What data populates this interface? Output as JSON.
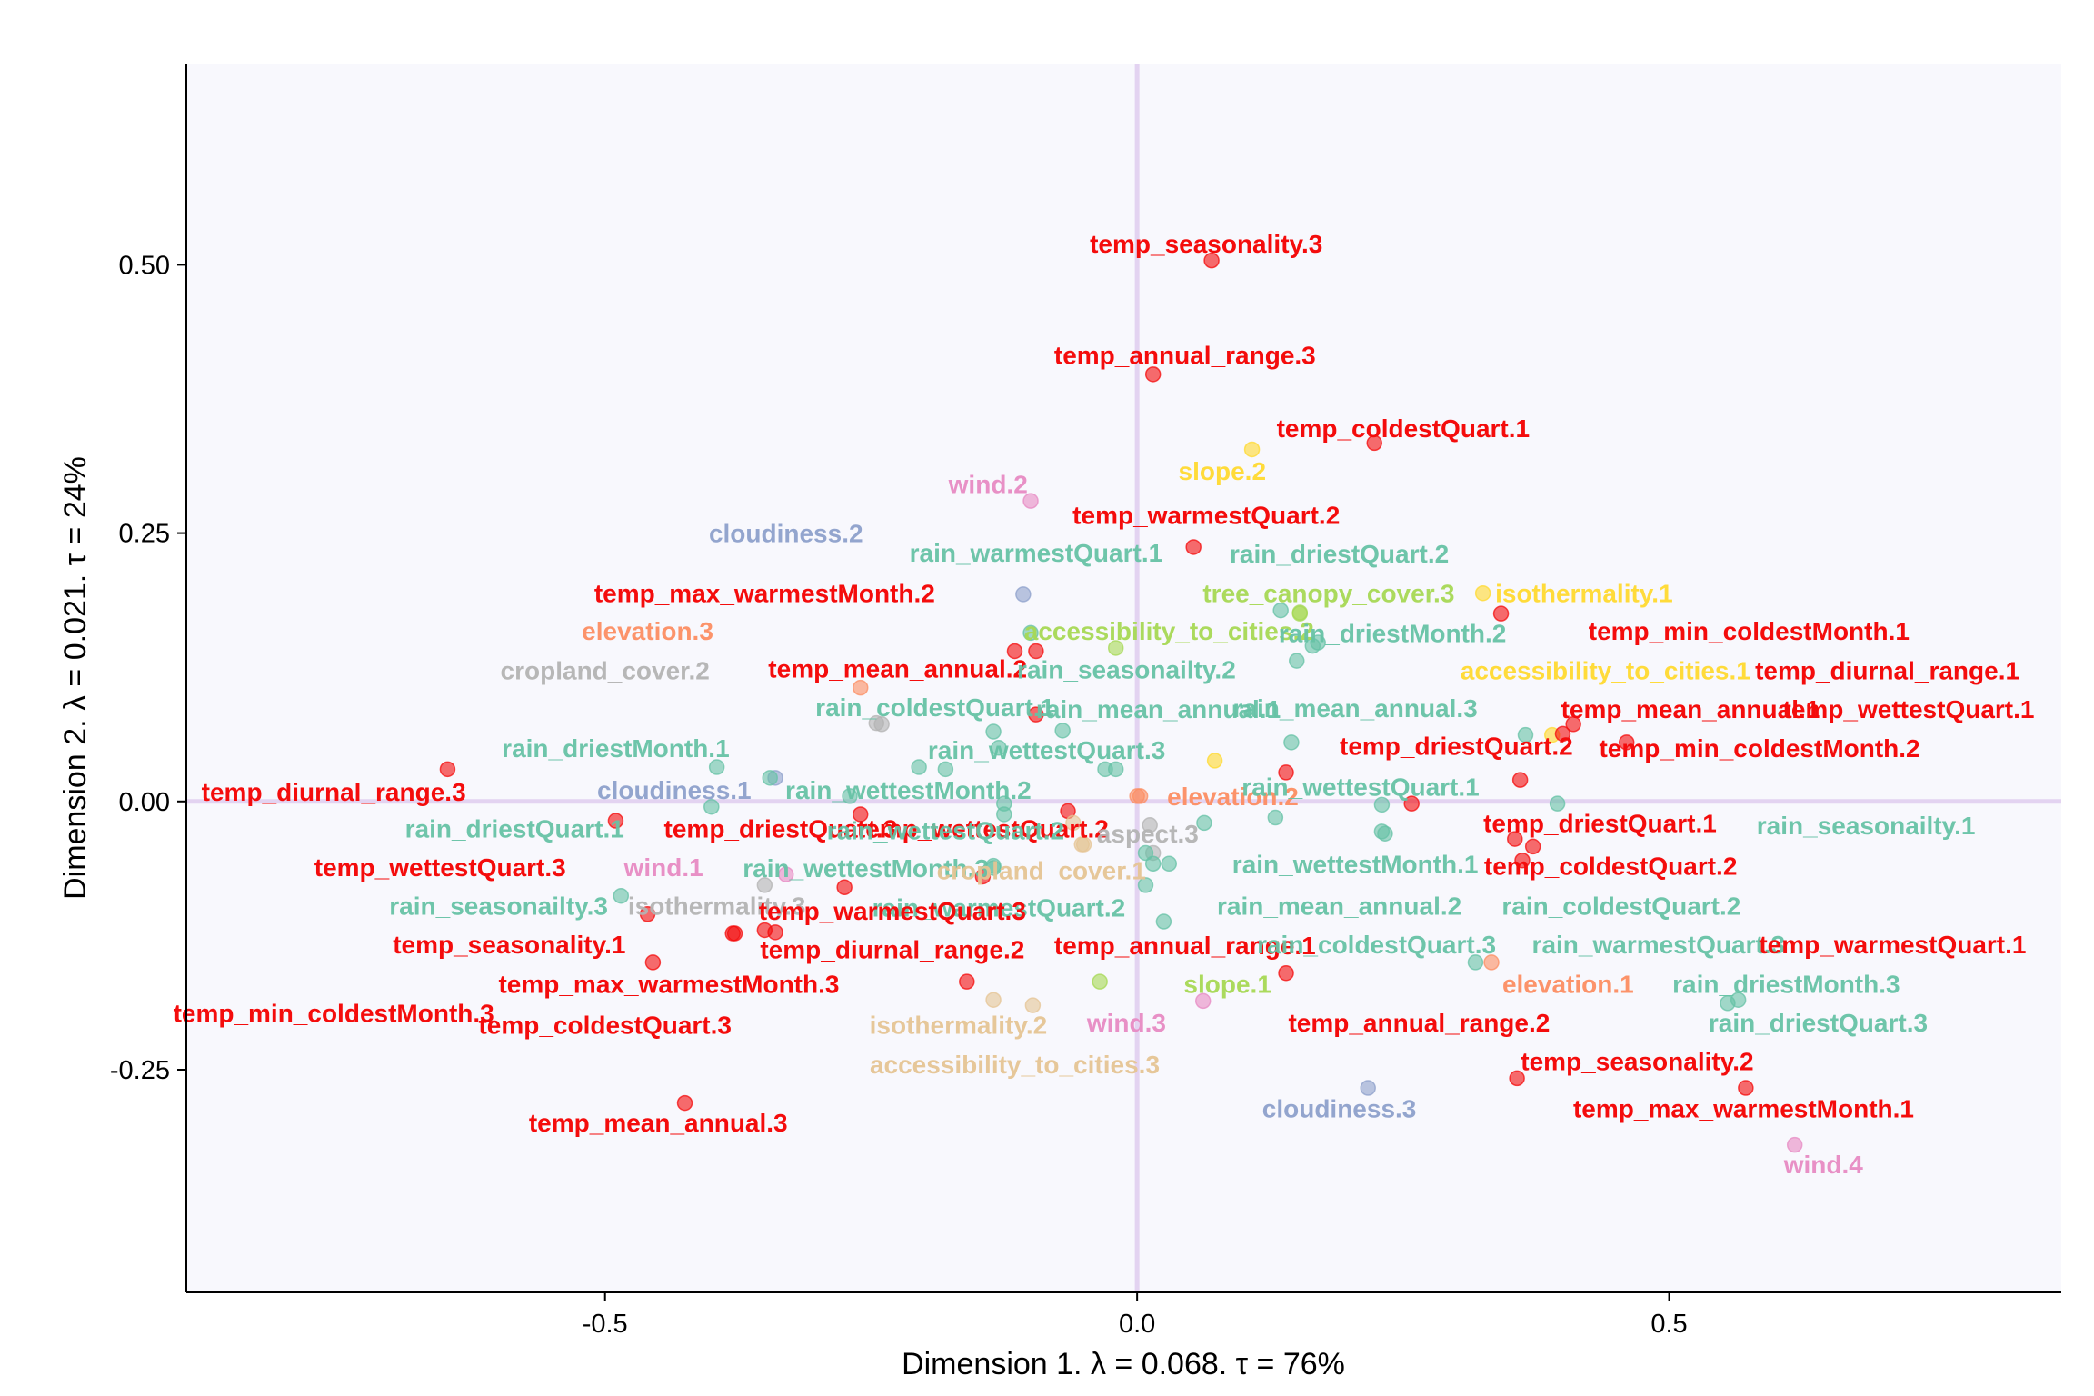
{
  "chart_data": {
    "type": "scatter",
    "title": "",
    "xlabel": "Dimension 1.   λ = 0.068.  τ = 76%",
    "ylabel": "Dimension 2.   λ = 0.021.   τ = 24%",
    "xlim": [
      -0.8935,
      0.8685
    ],
    "ylim": [
      -0.4575,
      0.6875
    ],
    "xticks": [
      -0.5,
      0.0,
      0.5
    ],
    "xtick_labels": [
      "-0.5",
      "0.0",
      "0.5"
    ],
    "yticks": [
      -0.25,
      0.0,
      0.25,
      0.5
    ],
    "ytick_labels": [
      "-0.25",
      "0.00",
      "0.25",
      "0.50"
    ],
    "reference_lines": {
      "x": 0,
      "y": 0
    },
    "grid": false,
    "panel_background": "#f8f8fd",
    "reference_line_color": "#e3d3f1",
    "group_colors": {
      "temp": "#f40c0c",
      "rain": "#66c2a5",
      "wind": "#e78ac3",
      "cloudiness": "#8da0cb",
      "elevation": "#fc8d62",
      "cropland": "#b3b3b3",
      "aspect": "#b3b3b3",
      "slope": "#ffd92f",
      "isothermality": "#ffd92f",
      "tree": "#a6d854",
      "accessibility": "#a6d854",
      "isothermality_low": "#e5c494",
      "accessibility_low": "#e5c494"
    },
    "points": [
      {
        "label": "temp_seasonality.3",
        "x": 0.07,
        "y": 0.504,
        "group": "temp",
        "lx": 0.065,
        "ly": 0.52
      },
      {
        "label": "temp_annual_range.3",
        "x": 0.015,
        "y": 0.398,
        "group": "temp",
        "lx": 0.045,
        "ly": 0.416
      },
      {
        "label": "temp_coldestQuart.1",
        "x": 0.223,
        "y": 0.334,
        "group": "temp",
        "lx": 0.25,
        "ly": 0.348
      },
      {
        "label": "wind.2",
        "x": -0.1,
        "y": 0.28,
        "group": "wind",
        "lx": -0.14,
        "ly": 0.296
      },
      {
        "label": "slope.2",
        "x": 0.108,
        "y": 0.328,
        "group": "slope",
        "lx": 0.08,
        "ly": 0.308
      },
      {
        "label": "temp_warmestQuart.2",
        "x": 0.053,
        "y": 0.237,
        "group": "temp",
        "lx": 0.065,
        "ly": 0.267
      },
      {
        "label": "cloudiness.2",
        "x": -0.107,
        "y": 0.193,
        "group": "cloudiness",
        "lx": -0.33,
        "ly": 0.25
      },
      {
        "label": "rain_warmestQuart.1",
        "x": -0.1,
        "y": 0.157,
        "group": "rain",
        "lx": -0.095,
        "ly": 0.232
      },
      {
        "label": "rain_driestQuart.2",
        "x": 0.135,
        "y": 0.178,
        "group": "rain",
        "lx": 0.19,
        "ly": 0.231
      },
      {
        "label": "temp_max_warmestMonth.2",
        "x": -0.115,
        "y": 0.14,
        "group": "temp",
        "lx": -0.35,
        "ly": 0.194
      },
      {
        "label": "tree_canopy_cover.3",
        "x": 0.153,
        "y": 0.176,
        "group": "tree",
        "lx": 0.18,
        "ly": 0.194
      },
      {
        "label": "isothermality.1",
        "x": 0.325,
        "y": 0.194,
        "group": "isothermality",
        "lx": 0.42,
        "ly": 0.194
      },
      {
        "label": "elevation.3",
        "x": -0.26,
        "y": 0.106,
        "group": "elevation",
        "lx": -0.46,
        "ly": 0.159
      },
      {
        "label": "accessibility_to_cities.2",
        "x": -0.02,
        "y": 0.143,
        "group": "accessibility",
        "lx": 0.03,
        "ly": 0.159
      },
      {
        "label": "rain_driestMonth.2",
        "x": 0.17,
        "y": 0.148,
        "group": "rain",
        "lx": 0.24,
        "ly": 0.157
      },
      {
        "label": "temp_min_coldestMonth.1",
        "x": 0.342,
        "y": 0.175,
        "group": "temp",
        "lx": 0.575,
        "ly": 0.159
      },
      {
        "label": "cropland_cover.2",
        "x": -0.245,
        "y": 0.073,
        "group": "cropland",
        "lx": -0.5,
        "ly": 0.122
      },
      {
        "label": "temp_mean_annual.2",
        "x": -0.095,
        "y": 0.081,
        "group": "temp",
        "lx": -0.225,
        "ly": 0.124
      },
      {
        "label": "rain_seasonailty.2",
        "x": 0.15,
        "y": 0.131,
        "group": "rain",
        "lx": -0.01,
        "ly": 0.123
      },
      {
        "label": "accessibility_to_cities.1",
        "x": 0.39,
        "y": 0.062,
        "group": "isothermality",
        "lx": 0.44,
        "ly": 0.122
      },
      {
        "label": "temp_diurnal_range.1",
        "x": 0.41,
        "y": 0.072,
        "group": "temp",
        "lx": 0.705,
        "ly": 0.122
      },
      {
        "label": "rain_coldestQuart.1",
        "x": -0.135,
        "y": 0.065,
        "group": "rain",
        "lx": -0.19,
        "ly": 0.088
      },
      {
        "label": "rain_mean_annual.1",
        "x": 0.145,
        "y": 0.055,
        "group": "rain",
        "lx": 0.02,
        "ly": 0.086
      },
      {
        "label": "rain_mean_annual.3",
        "x": 0.365,
        "y": 0.062,
        "group": "rain",
        "lx": 0.205,
        "ly": 0.087
      },
      {
        "label": "temp_mean_annual.1",
        "x": 0.4,
        "y": 0.063,
        "group": "temp",
        "lx": 0.52,
        "ly": 0.086
      },
      {
        "label": "temp_wettestQuart.1",
        "x": 0.46,
        "y": 0.055,
        "group": "temp",
        "lx": 0.725,
        "ly": 0.086
      },
      {
        "label": "rain_driestMonth.1",
        "x": -0.395,
        "y": 0.032,
        "group": "rain",
        "lx": -0.49,
        "ly": 0.05
      },
      {
        "label": "rain_wettestQuart.3",
        "x": -0.03,
        "y": 0.03,
        "group": "rain",
        "lx": -0.085,
        "ly": 0.048
      },
      {
        "label": "temp_driestQuart.2",
        "x": 0.14,
        "y": 0.027,
        "group": "temp",
        "lx": 0.3,
        "ly": 0.052
      },
      {
        "label": "temp_min_coldestMonth.2",
        "x": 0.36,
        "y": 0.02,
        "group": "temp",
        "lx": 0.585,
        "ly": 0.05
      },
      {
        "label": "temp_diurnal_range.3",
        "x": -0.648,
        "y": 0.03,
        "group": "temp",
        "lx": -0.755,
        "ly": 0.009
      },
      {
        "label": "cloudiness.1",
        "x": -0.34,
        "y": 0.022,
        "group": "cloudiness",
        "lx": -0.435,
        "ly": 0.011
      },
      {
        "label": "rain_wettestMonth.2",
        "x": -0.205,
        "y": 0.032,
        "group": "rain",
        "lx": -0.215,
        "ly": 0.011
      },
      {
        "label": "elevation.2",
        "x": 0.003,
        "y": 0.005,
        "group": "elevation",
        "lx": 0.09,
        "ly": 0.005
      },
      {
        "label": "rain_wettestQuart.1",
        "x": 0.23,
        "y": -0.003,
        "group": "rain",
        "lx": 0.21,
        "ly": 0.014
      },
      {
        "label": "rain_driestQuart.1",
        "x": -0.4,
        "y": -0.005,
        "group": "rain",
        "lx": -0.585,
        "ly": -0.025
      },
      {
        "label": "temp_driestQuart.3",
        "x": -0.26,
        "y": -0.012,
        "group": "temp",
        "lx": -0.335,
        "ly": -0.025
      },
      {
        "label": "temp_wettestQuart.2",
        "x": -0.065,
        "y": -0.009,
        "group": "temp",
        "lx": -0.145,
        "ly": -0.025
      },
      {
        "label": "rain_wettestQuart.2",
        "x": -0.125,
        "y": -0.012,
        "group": "rain",
        "lx": -0.18,
        "ly": -0.027
      },
      {
        "label": "aspect.3",
        "x": 0.015,
        "y": -0.048,
        "group": "aspect",
        "lx": 0.01,
        "ly": -0.03
      },
      {
        "label": "temp_driestQuart.1",
        "x": 0.355,
        "y": -0.035,
        "group": "temp",
        "lx": 0.435,
        "ly": -0.02
      },
      {
        "label": "rain_seasonailty.1",
        "x": 0.395,
        "y": -0.002,
        "group": "rain",
        "lx": 0.685,
        "ly": -0.022
      },
      {
        "label": "temp_wettestQuart.3",
        "x": -0.46,
        "y": -0.105,
        "group": "temp",
        "lx": -0.655,
        "ly": -0.061
      },
      {
        "label": "wind.1",
        "x": -0.33,
        "y": -0.068,
        "group": "wind",
        "lx": -0.445,
        "ly": -0.061
      },
      {
        "label": "rain_wettestMonth.3",
        "x": -0.135,
        "y": -0.062,
        "group": "rain",
        "lx": -0.255,
        "ly": -0.062
      },
      {
        "label": "cropland_cover.1",
        "x": -0.052,
        "y": -0.04,
        "group": "accessibility_low",
        "lx": -0.09,
        "ly": -0.064
      },
      {
        "label": "rain_wettestMonth.1",
        "x": 0.13,
        "y": -0.015,
        "group": "rain",
        "lx": 0.205,
        "ly": -0.058
      },
      {
        "label": "temp_coldestQuart.2",
        "x": 0.362,
        "y": -0.055,
        "group": "temp",
        "lx": 0.445,
        "ly": -0.06
      },
      {
        "label": "rain_seasonailty.3",
        "x": -0.485,
        "y": -0.088,
        "group": "rain",
        "lx": -0.6,
        "ly": -0.097
      },
      {
        "label": "isothermality.3",
        "x": -0.35,
        "y": -0.078,
        "group": "cropland",
        "lx": -0.395,
        "ly": -0.097
      },
      {
        "label": "rain_warmestQuart.2",
        "x": 0.008,
        "y": -0.078,
        "group": "rain",
        "lx": -0.13,
        "ly": -0.099
      },
      {
        "label": "temp_warmestQuart.3",
        "x": -0.275,
        "y": -0.08,
        "group": "temp",
        "lx": -0.23,
        "ly": -0.102
      },
      {
        "label": "rain_mean_annual.2",
        "x": 0.03,
        "y": -0.058,
        "group": "rain",
        "lx": 0.19,
        "ly": -0.097
      },
      {
        "label": "rain_coldestQuart.2",
        "x": 0.23,
        "y": -0.028,
        "group": "rain",
        "lx": 0.455,
        "ly": -0.097
      },
      {
        "label": "temp_seasonality.1",
        "x": -0.455,
        "y": -0.15,
        "group": "temp",
        "lx": -0.59,
        "ly": -0.133
      },
      {
        "label": "temp_diurnal_range.2",
        "x": -0.35,
        "y": -0.12,
        "group": "temp",
        "lx": -0.23,
        "ly": -0.138
      },
      {
        "label": "temp_annual_range.1",
        "x": 0.14,
        "y": -0.16,
        "group": "temp",
        "lx": 0.045,
        "ly": -0.134
      },
      {
        "label": "rain_coldestQuart.3",
        "x": 0.025,
        "y": -0.112,
        "group": "rain",
        "lx": 0.225,
        "ly": -0.133
      },
      {
        "label": "rain_warmestQuart.3",
        "x": 0.318,
        "y": -0.15,
        "group": "rain",
        "lx": 0.49,
        "ly": -0.133
      },
      {
        "label": "temp_warmestQuart.1",
        "x": 0.372,
        "y": -0.042,
        "group": "temp",
        "lx": 0.71,
        "ly": -0.133
      },
      {
        "label": "temp_max_warmestMonth.3",
        "x": -0.38,
        "y": -0.123,
        "group": "temp",
        "lx": -0.44,
        "ly": -0.17
      },
      {
        "label": "slope.1",
        "x": -0.035,
        "y": -0.168,
        "group": "tree",
        "lx": 0.085,
        "ly": -0.17
      },
      {
        "label": "elevation.1",
        "x": 0.333,
        "y": -0.15,
        "group": "elevation",
        "lx": 0.405,
        "ly": -0.17
      },
      {
        "label": "rain_driestMonth.3",
        "x": 0.555,
        "y": -0.188,
        "group": "rain",
        "lx": 0.61,
        "ly": -0.17
      },
      {
        "label": "temp_min_coldestMonth.3",
        "x": -0.16,
        "y": -0.168,
        "group": "temp",
        "lx": -0.755,
        "ly": -0.197
      },
      {
        "label": "temp_coldestQuart.3",
        "x": -0.34,
        "y": -0.122,
        "group": "temp",
        "lx": -0.5,
        "ly": -0.208
      },
      {
        "label": "isothermality.2",
        "x": -0.098,
        "y": -0.19,
        "group": "isothermality_low",
        "lx": -0.168,
        "ly": -0.208
      },
      {
        "label": "wind.3",
        "x": 0.062,
        "y": -0.186,
        "group": "wind",
        "lx": -0.01,
        "ly": -0.206
      },
      {
        "label": "temp_annual_range.2",
        "x": 0.258,
        "y": -0.002,
        "group": "temp",
        "lx": 0.265,
        "ly": -0.206
      },
      {
        "label": "rain_driestQuart.3",
        "x": 0.565,
        "y": -0.185,
        "group": "rain",
        "lx": 0.64,
        "ly": -0.206
      },
      {
        "label": "accessibility_to_cities.3",
        "x": -0.135,
        "y": -0.185,
        "group": "accessibility_low",
        "lx": -0.115,
        "ly": -0.245
      },
      {
        "label": "temp_seasonality.2",
        "x": 0.357,
        "y": -0.258,
        "group": "temp",
        "lx": 0.47,
        "ly": -0.242
      },
      {
        "label": "cloudiness.3",
        "x": 0.217,
        "y": -0.267,
        "group": "cloudiness",
        "lx": 0.19,
        "ly": -0.286
      },
      {
        "label": "temp_max_warmestMonth.1",
        "x": 0.572,
        "y": -0.267,
        "group": "temp",
        "lx": 0.57,
        "ly": -0.286
      },
      {
        "label": "temp_mean_annual.3",
        "x": -0.425,
        "y": -0.281,
        "group": "temp",
        "lx": -0.45,
        "ly": -0.299
      },
      {
        "label": "wind.4",
        "x": 0.618,
        "y": -0.32,
        "group": "wind",
        "lx": 0.645,
        "ly": -0.338
      },
      {
        "label": "",
        "x": -0.24,
        "y": 0.072,
        "group": "cropland"
      },
      {
        "label": "",
        "x": -0.13,
        "y": 0.05,
        "group": "rain"
      },
      {
        "label": "",
        "x": -0.07,
        "y": 0.066,
        "group": "rain"
      },
      {
        "label": "",
        "x": -0.345,
        "y": 0.022,
        "group": "rain"
      },
      {
        "label": "",
        "x": -0.18,
        "y": 0.03,
        "group": "rain"
      },
      {
        "label": "",
        "x": -0.125,
        "y": -0.002,
        "group": "rain"
      },
      {
        "label": "",
        "x": 0.063,
        "y": -0.02,
        "group": "rain"
      },
      {
        "label": "",
        "x": 0.233,
        "y": -0.03,
        "group": "rain"
      },
      {
        "label": "",
        "x": 0.008,
        "y": -0.048,
        "group": "rain"
      },
      {
        "label": "",
        "x": 0.015,
        "y": -0.058,
        "group": "rain"
      },
      {
        "label": "",
        "x": 0.073,
        "y": 0.038,
        "group": "slope"
      },
      {
        "label": "",
        "x": 0.0,
        "y": 0.005,
        "group": "elevation"
      },
      {
        "label": "",
        "x": -0.05,
        "y": -0.04,
        "group": "isothermality_low"
      },
      {
        "label": "",
        "x": -0.06,
        "y": -0.02,
        "group": "isothermality_low"
      },
      {
        "label": "",
        "x": -0.02,
        "y": 0.03,
        "group": "rain"
      },
      {
        "label": "",
        "x": 0.012,
        "y": -0.022,
        "group": "cropland"
      },
      {
        "label": "",
        "x": -0.135,
        "y": -0.06,
        "group": "rain"
      },
      {
        "label": "",
        "x": -0.27,
        "y": 0.005,
        "group": "rain"
      },
      {
        "label": "",
        "x": -0.49,
        "y": -0.018,
        "group": "temp"
      },
      {
        "label": "",
        "x": -0.145,
        "y": -0.07,
        "group": "temp"
      },
      {
        "label": "",
        "x": -0.378,
        "y": -0.123,
        "group": "temp"
      },
      {
        "label": "",
        "x": -0.095,
        "y": 0.14,
        "group": "temp"
      },
      {
        "label": "",
        "x": 0.165,
        "y": 0.145,
        "group": "rain"
      },
      {
        "label": "",
        "x": 0.153,
        "y": 0.175,
        "group": "tree"
      }
    ]
  }
}
